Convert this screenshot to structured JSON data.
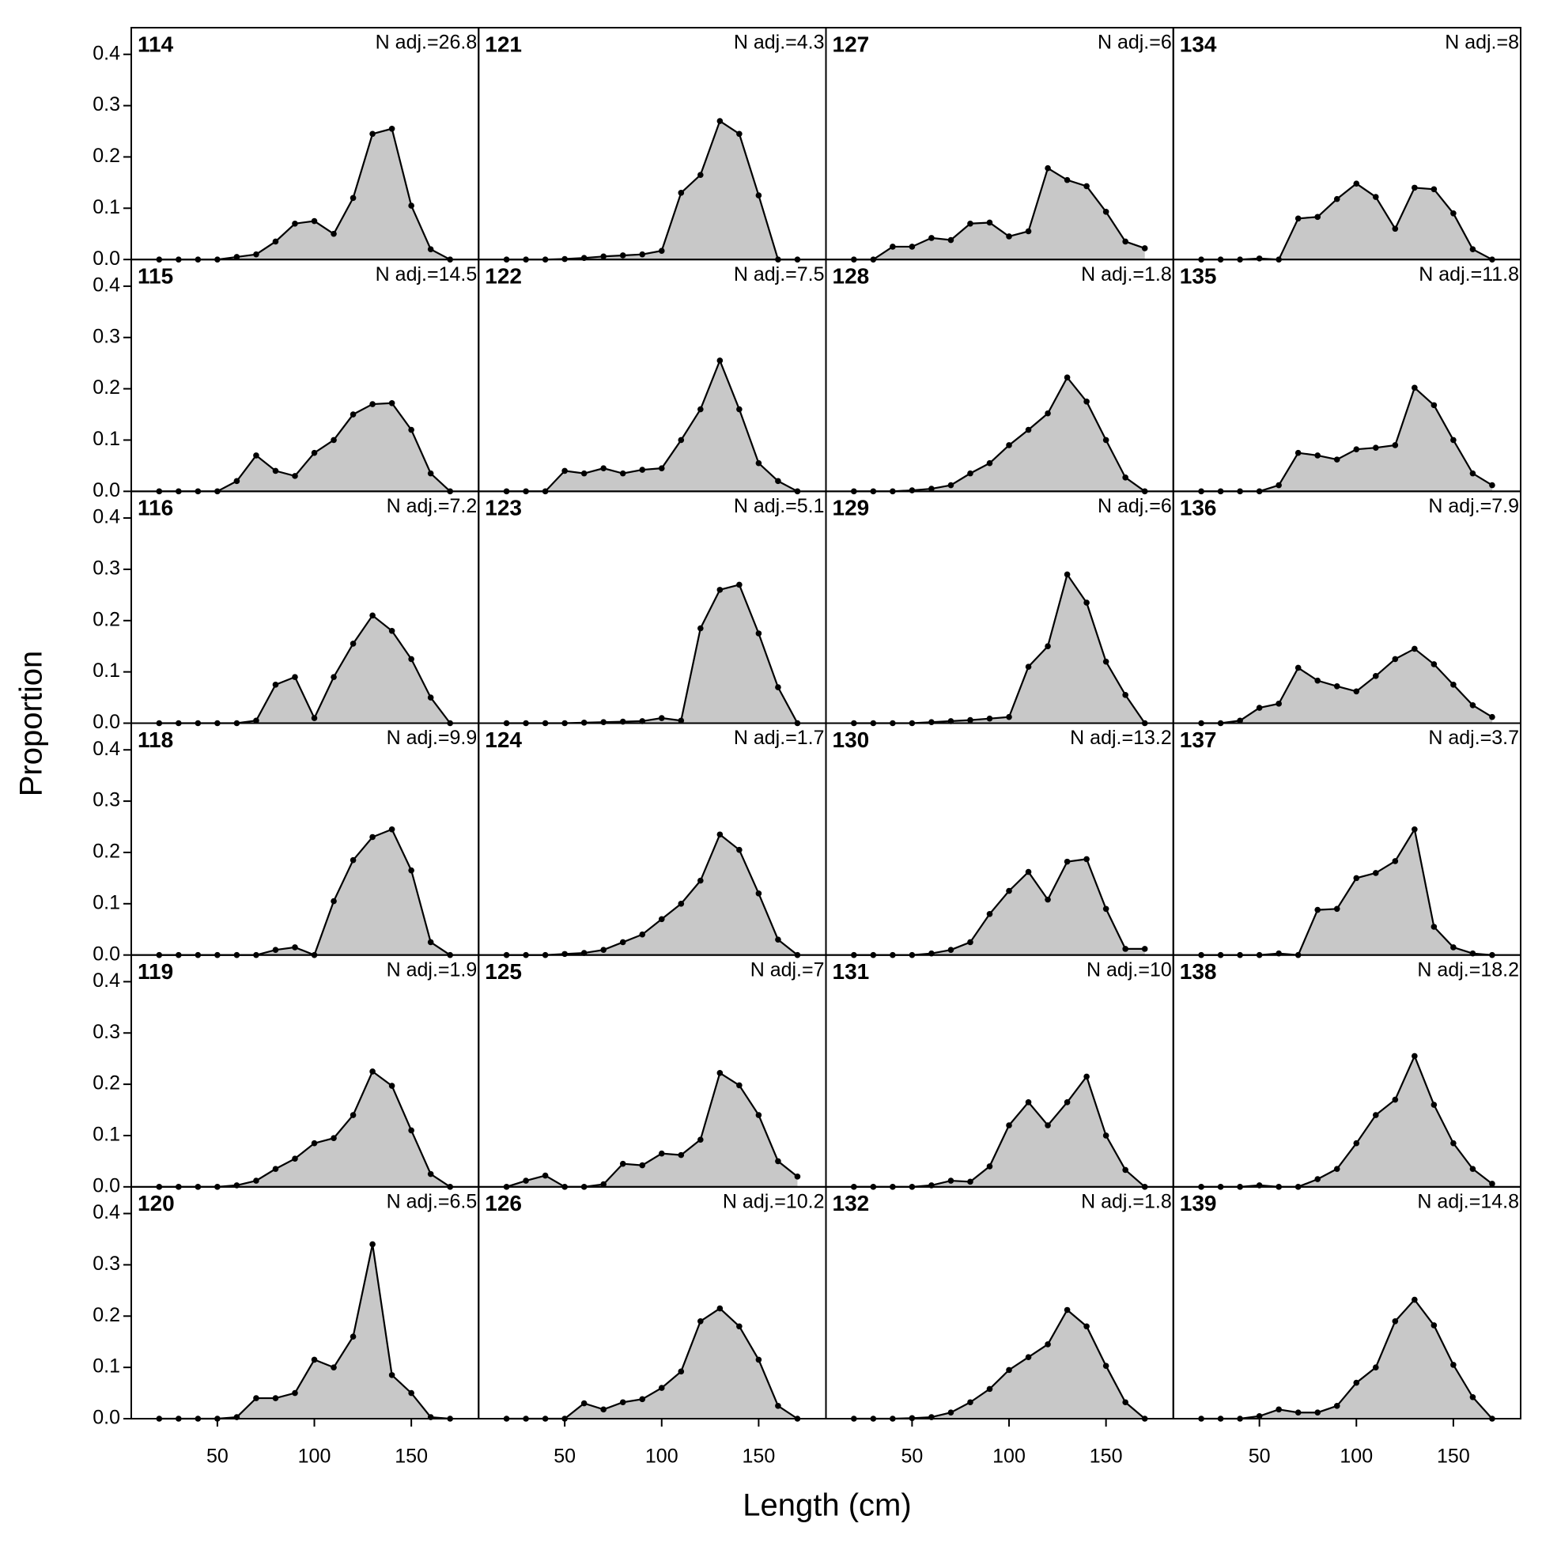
{
  "chart_data": {
    "type": "area-grid",
    "xlabel": "Length (cm)",
    "ylabel": "Proportion",
    "x": [
      20,
      30,
      40,
      50,
      60,
      70,
      80,
      90,
      100,
      110,
      120,
      130,
      140,
      150,
      160,
      170
    ],
    "xlim": [
      5.6,
      184.7
    ],
    "ylim": [
      0,
      0.452
    ],
    "xticks": [
      50,
      100,
      150
    ],
    "yticks": [
      {
        "value": 0,
        "label": "0.0"
      },
      {
        "value": 0.1,
        "label": "0.1"
      },
      {
        "value": 0.2,
        "label": "0.2"
      },
      {
        "value": 0.3,
        "label": "0.3"
      },
      {
        "value": 0.4,
        "label": "0.4"
      }
    ],
    "fill": "#c8c8c8",
    "color": "#000000",
    "columns": 4,
    "panels": [
      {
        "title": "114",
        "subtitle": "N adj.=26.8",
        "values": [
          0,
          0,
          0,
          0,
          0.005,
          0.01,
          0.035,
          0.07,
          0.075,
          0.05,
          0.12,
          0.245,
          0.255,
          0.105,
          0.02,
          0
        ]
      },
      {
        "title": "115",
        "subtitle": "N adj.=14.5",
        "values": [
          0,
          0,
          0,
          0,
          0.02,
          0.07,
          0.04,
          0.03,
          0.075,
          0.1,
          0.15,
          0.17,
          0.172,
          0.12,
          0.035,
          0
        ]
      },
      {
        "title": "116",
        "subtitle": "N adj.=7.2",
        "values": [
          0,
          0,
          0,
          0,
          0,
          0.005,
          0.075,
          0.09,
          0.01,
          0.09,
          0.155,
          0.21,
          0.18,
          0.125,
          0.05,
          0
        ]
      },
      {
        "title": "118",
        "subtitle": "N adj.=9.9",
        "values": [
          0,
          0,
          0,
          0,
          0,
          0,
          0.01,
          0.015,
          0,
          0.105,
          0.185,
          0.23,
          0.245,
          0.165,
          0.025,
          0
        ]
      },
      {
        "title": "119",
        "subtitle": "N adj.=1.9",
        "values": [
          0,
          0,
          0,
          0,
          0.003,
          0.012,
          0.035,
          0.055,
          0.085,
          0.095,
          0.14,
          0.225,
          0.197,
          0.11,
          0.025,
          0
        ]
      },
      {
        "title": "120",
        "subtitle": "N adj.=6.5",
        "values": [
          0,
          0,
          0,
          0,
          0.003,
          0.04,
          0.04,
          0.05,
          0.115,
          0.1,
          0.16,
          0.34,
          0.085,
          0.05,
          0.003,
          0
        ]
      },
      {
        "title": "121",
        "subtitle": "N adj.=4.3",
        "values": [
          0,
          0,
          0,
          0.001,
          0.003,
          0.006,
          0.008,
          0.01,
          0.017,
          0.13,
          0.165,
          0.27,
          0.245,
          0.125,
          0,
          0
        ]
      },
      {
        "title": "122",
        "subtitle": "N adj.=7.5",
        "values": [
          0,
          0,
          0,
          0.04,
          0.035,
          0.045,
          0.035,
          0.042,
          0.045,
          0.1,
          0.16,
          0.255,
          0.16,
          0.055,
          0.02,
          0
        ]
      },
      {
        "title": "123",
        "subtitle": "N adj.=5.1",
        "values": [
          0,
          0,
          0,
          0,
          0.001,
          0.002,
          0.003,
          0.004,
          0.01,
          0.005,
          0.185,
          0.26,
          0.27,
          0.175,
          0.07,
          0
        ]
      },
      {
        "title": "124",
        "subtitle": "N adj.=1.7",
        "values": [
          0,
          0,
          0,
          0.002,
          0.004,
          0.01,
          0.025,
          0.04,
          0.07,
          0.1,
          0.145,
          0.235,
          0.205,
          0.12,
          0.03,
          0
        ]
      },
      {
        "title": "125",
        "subtitle": "N adj.=7",
        "values": [
          0,
          0.012,
          0.022,
          0,
          0,
          0.005,
          0.045,
          0.042,
          0.065,
          0.062,
          0.092,
          0.222,
          0.198,
          0.14,
          0.05,
          0.02
        ]
      },
      {
        "title": "126",
        "subtitle": "N adj.=10.2",
        "values": [
          0,
          0,
          0,
          0,
          0.03,
          0.018,
          0.032,
          0.038,
          0.06,
          0.092,
          0.19,
          0.215,
          0.18,
          0.115,
          0.025,
          0
        ]
      },
      {
        "title": "127",
        "subtitle": "N adj.=6",
        "values": [
          0,
          0,
          0.025,
          0.025,
          0.042,
          0.038,
          0.07,
          0.072,
          0.045,
          0.055,
          0.178,
          0.155,
          0.143,
          0.093,
          0.035,
          0.022
        ]
      },
      {
        "title": "128",
        "subtitle": "N adj.=1.8",
        "values": [
          0,
          0,
          0,
          0.002,
          0.005,
          0.012,
          0.035,
          0.055,
          0.09,
          0.12,
          0.152,
          0.222,
          0.175,
          0.1,
          0.027,
          0
        ]
      },
      {
        "title": "129",
        "subtitle": "N adj.=6",
        "values": [
          0,
          0,
          0,
          0,
          0.002,
          0.004,
          0.006,
          0.009,
          0.012,
          0.11,
          0.15,
          0.29,
          0.235,
          0.12,
          0.055,
          0
        ]
      },
      {
        "title": "130",
        "subtitle": "N adj.=13.2",
        "values": [
          0,
          0,
          0,
          0,
          0.003,
          0.01,
          0.025,
          0.08,
          0.125,
          0.162,
          0.108,
          0.182,
          0.187,
          0.09,
          0.012,
          0.012
        ]
      },
      {
        "title": "131",
        "subtitle": "N adj.=10",
        "values": [
          0,
          0,
          0,
          0,
          0.003,
          0.012,
          0.01,
          0.04,
          0.12,
          0.165,
          0.12,
          0.165,
          0.215,
          0.1,
          0.033,
          0
        ]
      },
      {
        "title": "132",
        "subtitle": "N adj.=1.8",
        "values": [
          0,
          0,
          0,
          0.001,
          0.003,
          0.012,
          0.032,
          0.058,
          0.095,
          0.12,
          0.145,
          0.212,
          0.18,
          0.103,
          0.032,
          0
        ]
      },
      {
        "title": "134",
        "subtitle": "N adj.=8",
        "values": [
          0,
          0,
          0,
          0.002,
          0,
          0.08,
          0.083,
          0.118,
          0.148,
          0.122,
          0.06,
          0.14,
          0.137,
          0.09,
          0.02,
          0
        ]
      },
      {
        "title": "135",
        "subtitle": "N adj.=11.8",
        "values": [
          0,
          0,
          0,
          0,
          0.012,
          0.075,
          0.07,
          0.062,
          0.082,
          0.085,
          0.09,
          0.202,
          0.168,
          0.1,
          0.035,
          0.012
        ]
      },
      {
        "title": "136",
        "subtitle": "N adj.=7.9",
        "values": [
          0,
          0,
          0.005,
          0.03,
          0.038,
          0.108,
          0.083,
          0.072,
          0.062,
          0.092,
          0.125,
          0.145,
          0.115,
          0.075,
          0.035,
          0.012
        ]
      },
      {
        "title": "137",
        "subtitle": "N adj.=3.7",
        "values": [
          0,
          0,
          0,
          0,
          0.003,
          0,
          0.088,
          0.09,
          0.15,
          0.16,
          0.183,
          0.245,
          0.055,
          0.015,
          0.003,
          0
        ]
      },
      {
        "title": "138",
        "subtitle": "N adj.=18.2",
        "values": [
          0,
          0,
          0,
          0.003,
          0,
          0,
          0.015,
          0.035,
          0.085,
          0.14,
          0.17,
          0.255,
          0.16,
          0.085,
          0.035,
          0.006
        ]
      },
      {
        "title": "139",
        "subtitle": "N adj.=14.8",
        "values": [
          0,
          0,
          0,
          0.005,
          0.018,
          0.012,
          0.012,
          0.025,
          0.07,
          0.1,
          0.19,
          0.232,
          0.182,
          0.105,
          0.042,
          0
        ]
      }
    ]
  }
}
